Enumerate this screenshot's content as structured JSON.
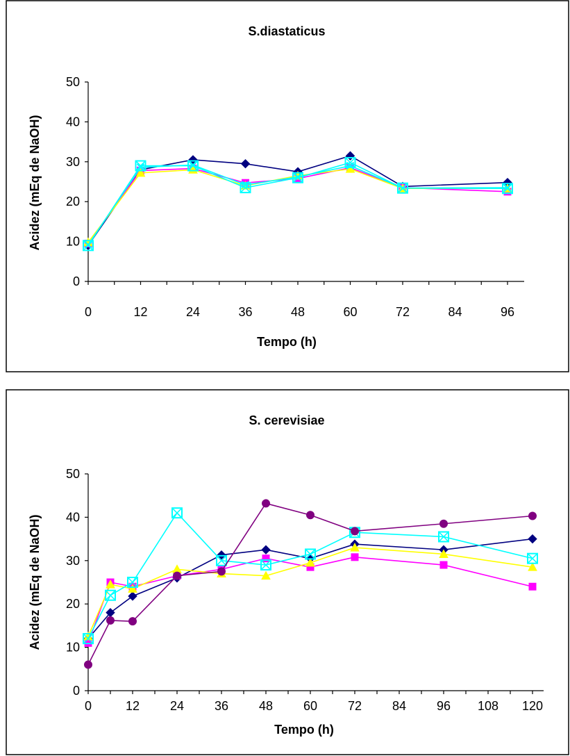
{
  "chart_data": [
    {
      "type": "line",
      "title": "S.diastaticus",
      "xlabel": "Tempo (h)",
      "ylabel": "Acidez (mEq de NaOH)",
      "xlim": [
        0,
        102
      ],
      "ylim": [
        0,
        50
      ],
      "xticks": [
        "0",
        "12",
        "24",
        "36",
        "48",
        "60",
        "72",
        "84",
        "96"
      ],
      "yticks": [
        "0",
        "10",
        "20",
        "30",
        "40",
        "50"
      ],
      "grid": false,
      "legend": "none",
      "x": [
        0,
        12,
        24,
        36,
        48,
        60,
        72,
        96
      ],
      "series": [
        {
          "marker": "diamond",
          "color": "#000080",
          "values": [
            9.0,
            28.0,
            30.5,
            29.5,
            27.5,
            31.5,
            23.8,
            24.8
          ]
        },
        {
          "marker": "square",
          "color": "#ff00ff",
          "values": [
            9.5,
            27.8,
            28.3,
            24.7,
            25.8,
            28.5,
            23.5,
            22.5
          ]
        },
        {
          "marker": "triangle",
          "color": "#ffff00",
          "values": [
            9.8,
            27.2,
            28.0,
            24.0,
            26.5,
            28.2,
            23.3,
            23.3
          ]
        },
        {
          "marker": "x",
          "color": "#00ffff",
          "values": [
            9.2,
            28.6,
            29.2,
            24.2,
            26.2,
            29.0,
            23.4,
            23.5
          ]
        },
        {
          "marker": "box-x",
          "color": "#00ffff",
          "values": [
            9.0,
            29.0,
            29.0,
            23.5,
            26.0,
            29.8,
            23.4,
            23.3
          ]
        }
      ]
    },
    {
      "type": "line",
      "title": "S. cerevisiae",
      "xlabel": "Tempo (h)",
      "ylabel": "Acidez (mEq de NaOH)",
      "xlim": [
        0,
        126
      ],
      "ylim": [
        0,
        50
      ],
      "xticks": [
        "0",
        "12",
        "24",
        "36",
        "48",
        "60",
        "72",
        "84",
        "96",
        "108",
        "120"
      ],
      "yticks": [
        "0",
        "10",
        "20",
        "30",
        "40",
        "50"
      ],
      "grid": false,
      "legend": "none",
      "x": [
        0,
        6,
        12,
        24,
        36,
        48,
        60,
        72,
        96,
        120
      ],
      "series": [
        {
          "marker": "diamond",
          "color": "#000080",
          "values": [
            12.0,
            18.0,
            21.8,
            26.0,
            31.3,
            32.5,
            30.5,
            33.8,
            32.5,
            35.0
          ]
        },
        {
          "marker": "square",
          "color": "#ff00ff",
          "values": [
            11.0,
            25.0,
            24.0,
            26.5,
            28.0,
            30.5,
            28.5,
            30.8,
            29.0,
            24.0
          ]
        },
        {
          "marker": "triangle",
          "color": "#ffff00",
          "values": [
            12.5,
            24.5,
            23.5,
            28.0,
            27.0,
            26.5,
            29.5,
            33.0,
            31.5,
            28.5
          ]
        },
        {
          "marker": "box-x",
          "color": "#00ffff",
          "values": [
            12.0,
            22.0,
            25.0,
            41.0,
            30.0,
            29.0,
            31.5,
            36.5,
            35.5,
            30.5
          ]
        },
        {
          "marker": "circle",
          "color": "#800080",
          "values": [
            6.0,
            16.2,
            16.0,
            26.5,
            27.5,
            43.2,
            40.5,
            36.8,
            38.5,
            40.3
          ]
        }
      ]
    }
  ]
}
